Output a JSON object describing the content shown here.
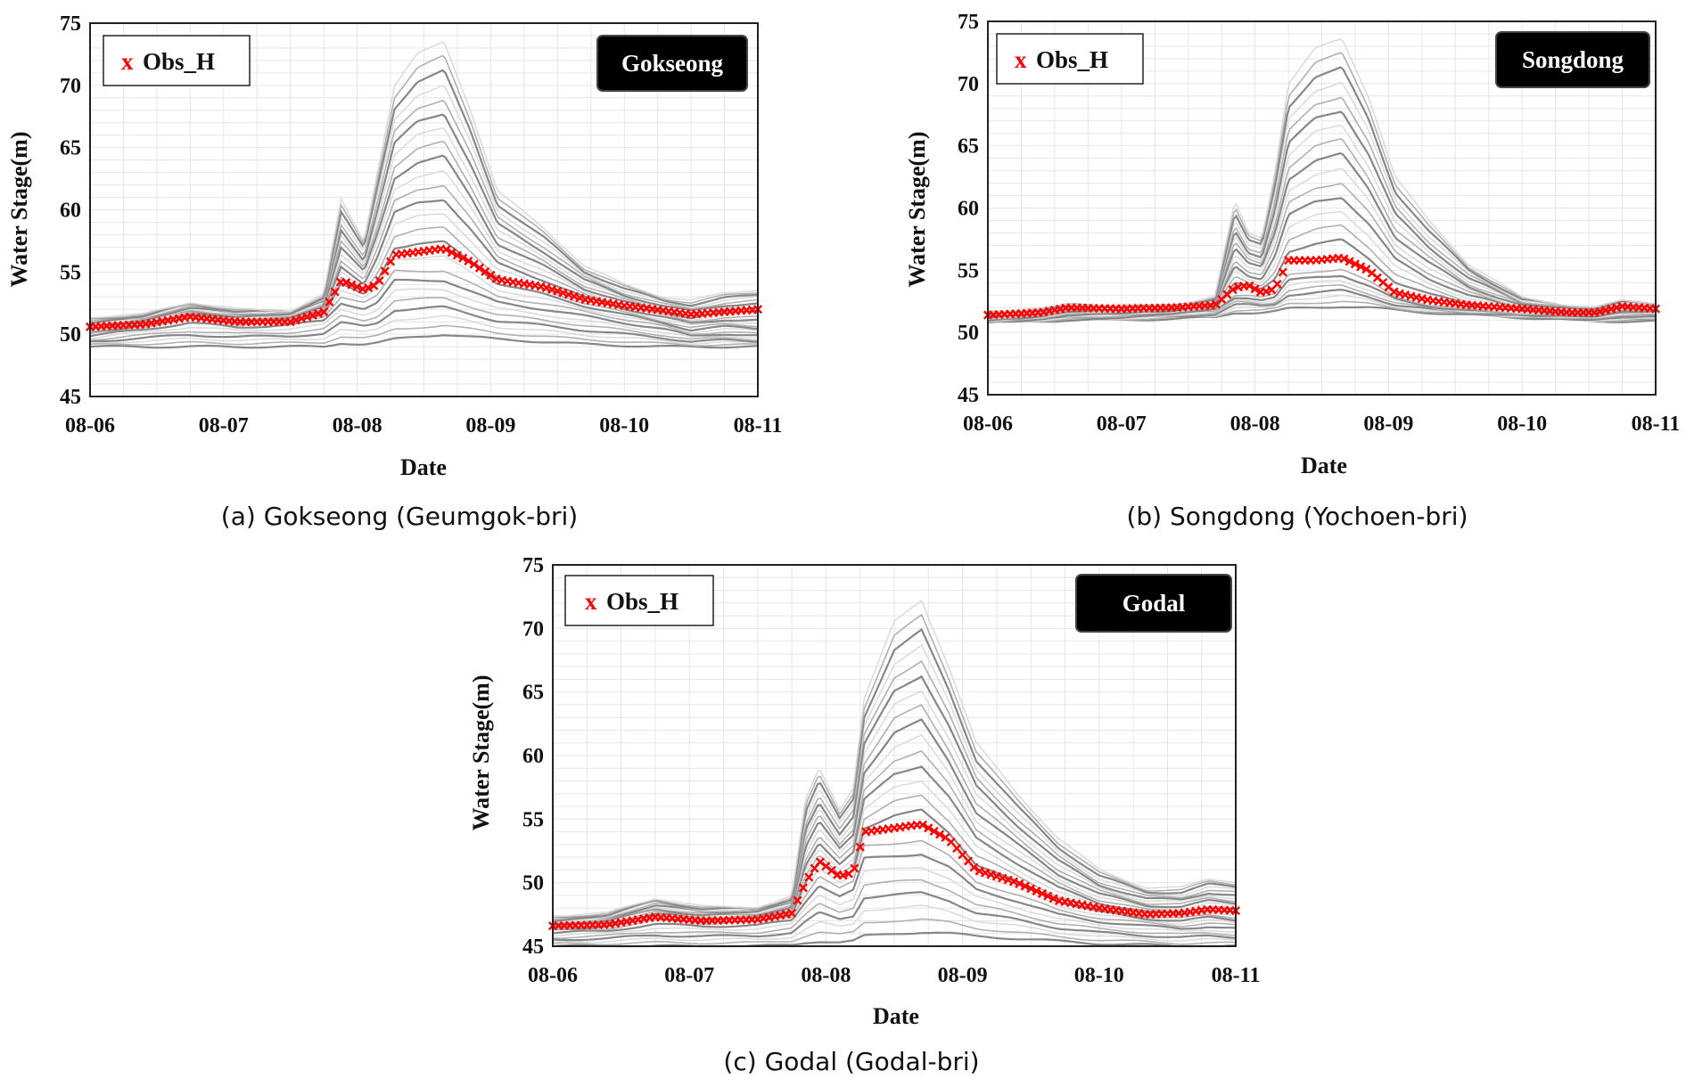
{
  "colors": {
    "obs": "#ff0000",
    "ensemble_dark": "#7a7a7a",
    "ensemble_light": "#d8d8d8",
    "grid": "#e6e6e6",
    "badge_bg": "#000000"
  },
  "chart_data": [
    {
      "type": "line",
      "station": "Gokseong",
      "caption": "(a) Gokseong (Geumgok-bri)",
      "xlabel": "Date",
      "ylabel": "Water Stage(m)",
      "legend_marker": "x",
      "legend_label": "Obs_H",
      "categories": [
        "08-06",
        "08-07",
        "08-08",
        "08-09",
        "08-10",
        "08-11"
      ],
      "yticks": [
        45,
        50,
        55,
        60,
        65,
        70,
        75
      ],
      "xlim": [
        0,
        5
      ],
      "ylim": [
        45,
        75
      ],
      "grid": true,
      "obs_series": {
        "name": "Obs_H",
        "x": [
          0,
          0.4,
          0.75,
          1.1,
          1.5,
          1.75,
          1.88,
          2.05,
          2.15,
          2.28,
          2.45,
          2.65,
          2.85,
          3.05,
          3.4,
          3.7,
          4.0,
          4.3,
          4.5,
          4.75,
          5.0
        ],
        "y": [
          50.6,
          50.8,
          51.4,
          51.0,
          51.0,
          51.8,
          54.3,
          53.6,
          54.0,
          56.4,
          56.6,
          56.9,
          55.8,
          54.4,
          53.8,
          52.8,
          52.3,
          51.9,
          51.6,
          51.8,
          52.0
        ]
      },
      "ensemble": {
        "base": [
          50.0,
          50.6,
          51.2,
          50.8,
          51.0,
          51.4,
          53.0,
          52.5,
          53.0,
          55.0,
          55.0,
          55.0,
          54.0,
          53.0,
          52.4,
          51.8,
          51.2,
          50.6,
          50.0,
          50.2,
          50.0
        ],
        "x": [
          0,
          0.4,
          0.75,
          1.1,
          1.5,
          1.75,
          1.88,
          2.05,
          2.15,
          2.28,
          2.45,
          2.65,
          2.85,
          3.05,
          3.4,
          3.7,
          4.0,
          4.3,
          4.5,
          4.75,
          5.0
        ],
        "upper": [
          51.4,
          51.6,
          52.6,
          52.0,
          51.9,
          53.2,
          60.8,
          57.5,
          63.0,
          70.0,
          72.5,
          73.5,
          68.0,
          61.5,
          58.5,
          55.5,
          54.0,
          53.0,
          52.7,
          53.3,
          53.6
        ],
        "lower": [
          49.0,
          49.0,
          49.0,
          49.0,
          49.0,
          49.0,
          49.3,
          49.2,
          49.3,
          49.6,
          49.8,
          50.0,
          49.8,
          49.6,
          49.4,
          49.2,
          49.1,
          49.0,
          49.0,
          49.0,
          49.0
        ],
        "members": 24
      }
    },
    {
      "type": "line",
      "station": "Songdong",
      "caption": "(b) Songdong (Yochoen-bri)",
      "xlabel": "Date",
      "ylabel": "Water Stage(m)",
      "legend_marker": "x",
      "legend_label": "Obs_H",
      "categories": [
        "08-06",
        "08-07",
        "08-08",
        "08-09",
        "08-10",
        "08-11"
      ],
      "yticks": [
        45,
        50,
        55,
        60,
        65,
        70,
        75
      ],
      "xlim": [
        0,
        5
      ],
      "ylim": [
        45,
        75
      ],
      "grid": true,
      "obs_series": {
        "name": "Obs_H",
        "x": [
          0,
          0.4,
          0.6,
          1.0,
          1.4,
          1.7,
          1.85,
          1.95,
          2.05,
          2.15,
          2.25,
          2.45,
          2.65,
          2.85,
          3.05,
          3.3,
          3.6,
          4.0,
          4.35,
          4.55,
          4.75,
          5.0
        ],
        "y": [
          51.4,
          51.6,
          52.0,
          51.9,
          52.0,
          52.2,
          53.6,
          53.8,
          53.2,
          53.5,
          55.8,
          55.8,
          56.0,
          55.0,
          53.2,
          52.6,
          52.2,
          51.9,
          51.6,
          51.6,
          52.1,
          51.9
        ]
      },
      "ensemble": {
        "base": [
          51.0,
          51.2,
          51.5,
          51.5,
          51.6,
          51.8,
          53.0,
          53.0,
          52.8,
          53.0,
          54.5,
          54.8,
          55.0,
          54.0,
          52.8,
          52.2,
          51.8,
          51.5,
          51.3,
          51.2,
          51.4,
          51.3
        ],
        "x": [
          0,
          0.4,
          0.6,
          1.0,
          1.4,
          1.7,
          1.85,
          1.95,
          2.05,
          2.15,
          2.25,
          2.45,
          2.65,
          2.85,
          3.05,
          3.3,
          3.6,
          4.0,
          4.35,
          4.55,
          4.75,
          5.0
        ],
        "upper": [
          51.7,
          51.9,
          52.3,
          52.2,
          52.2,
          52.9,
          60.5,
          58.0,
          57.6,
          63.0,
          70.0,
          72.8,
          73.6,
          69.0,
          62.5,
          59.0,
          55.5,
          52.8,
          52.2,
          52.0,
          52.6,
          52.4
        ],
        "lower": [
          50.8,
          50.9,
          51.0,
          51.0,
          51.1,
          51.2,
          51.6,
          51.6,
          51.6,
          51.7,
          51.9,
          52.0,
          52.1,
          52.0,
          51.8,
          51.6,
          51.4,
          51.2,
          51.0,
          50.9,
          50.9,
          50.9
        ],
        "members": 24
      }
    },
    {
      "type": "line",
      "station": "Godal",
      "caption": "(c) Godal (Godal-bri)",
      "xlabel": "Date",
      "ylabel": "Water Stage(m)",
      "legend_marker": "x",
      "legend_label": "Obs_H",
      "categories": [
        "08-06",
        "08-07",
        "08-08",
        "08-09",
        "08-10",
        "08-11"
      ],
      "yticks": [
        45,
        50,
        55,
        60,
        65,
        70,
        75
      ],
      "xlim": [
        0,
        5
      ],
      "ylim": [
        45,
        75
      ],
      "grid": true,
      "obs_series": {
        "name": "Obs_H",
        "x": [
          0,
          0.4,
          0.75,
          1.1,
          1.5,
          1.75,
          1.85,
          1.95,
          2.1,
          2.2,
          2.28,
          2.5,
          2.7,
          2.9,
          3.1,
          3.4,
          3.7,
          4.0,
          4.35,
          4.6,
          4.8,
          5.0
        ],
        "y": [
          46.6,
          46.7,
          47.3,
          47.0,
          47.1,
          47.6,
          50.0,
          51.7,
          50.5,
          50.8,
          54.0,
          54.3,
          54.6,
          53.4,
          51.0,
          50.0,
          48.6,
          48.0,
          47.5,
          47.6,
          47.9,
          47.8
        ]
      },
      "ensemble": {
        "base": [
          46.2,
          46.4,
          47.0,
          46.8,
          46.9,
          47.3,
          49.0,
          50.5,
          49.5,
          50.0,
          52.8,
          53.0,
          53.2,
          52.0,
          50.0,
          49.0,
          47.8,
          47.2,
          46.8,
          46.6,
          46.8,
          46.6
        ],
        "x": [
          0,
          0.4,
          0.75,
          1.1,
          1.5,
          1.75,
          1.85,
          1.95,
          2.1,
          2.2,
          2.28,
          2.5,
          2.7,
          2.9,
          3.1,
          3.4,
          3.7,
          4.0,
          4.35,
          4.6,
          4.8,
          5.0
        ],
        "upper": [
          47.4,
          47.6,
          48.8,
          48.1,
          48.1,
          48.9,
          56.5,
          59.0,
          55.8,
          57.5,
          64.5,
          70.5,
          72.2,
          67.0,
          61.0,
          57.0,
          53.5,
          51.0,
          49.6,
          49.6,
          50.3,
          50.1
        ],
        "lower": [
          45.0,
          45.0,
          45.0,
          45.0,
          45.0,
          45.1,
          45.3,
          45.4,
          45.3,
          45.4,
          45.8,
          46.0,
          46.1,
          46.0,
          45.8,
          45.6,
          45.4,
          45.2,
          45.1,
          45.0,
          45.0,
          45.0
        ],
        "members": 24
      }
    }
  ]
}
